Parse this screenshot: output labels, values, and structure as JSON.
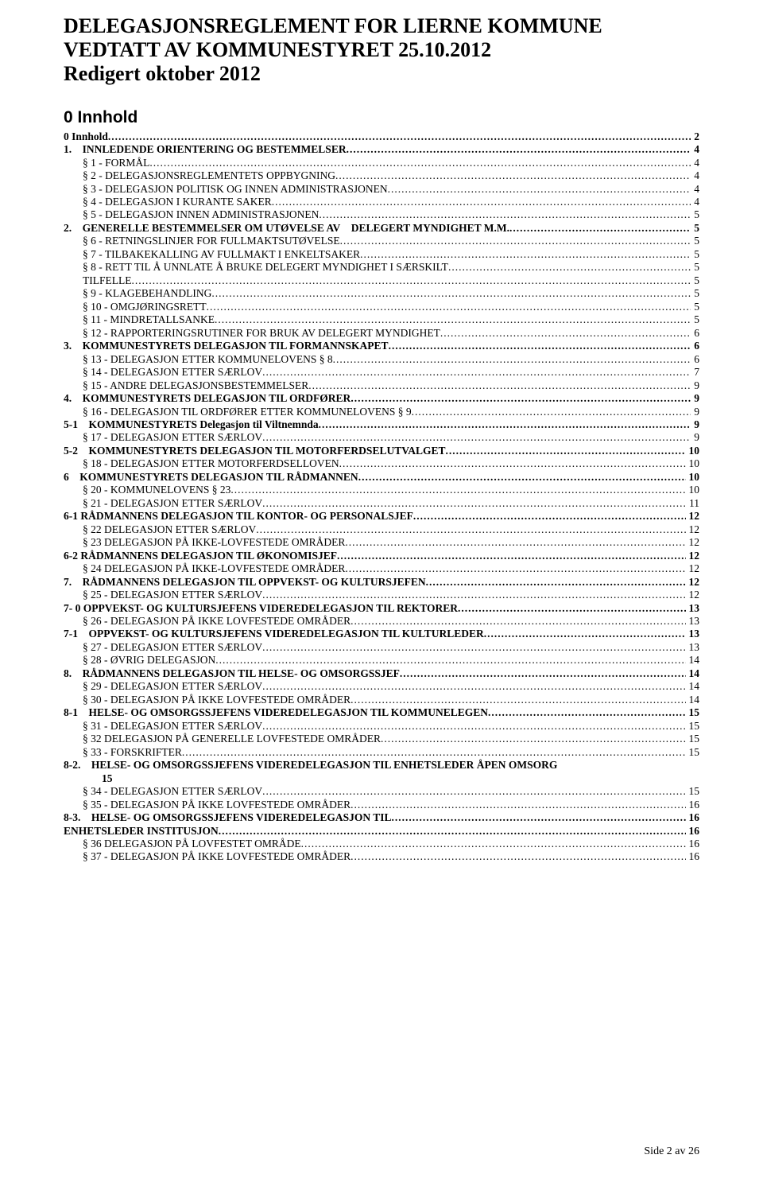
{
  "title": {
    "line1": "DELEGASJONSREGLEMENT FOR LIERNE KOMMUNE",
    "line2": "VEDTATT AV KOMMUNESTYRET 25.10.2012",
    "line3": "Redigert oktober 2012"
  },
  "section_heading": "0 Innhold",
  "footer": "Side 2 av 26",
  "toc": [
    {
      "lvl": 0,
      "label": "0 Innhold",
      "page": "2"
    },
    {
      "lvl": 0,
      "label": "1. INNLEDENDE ORIENTERING OG BESTEMMELSER",
      "page": "4"
    },
    {
      "lvl": 1,
      "label": "§ 1 - FORMÅL",
      "page": "4"
    },
    {
      "lvl": 1,
      "label": "§ 2 - DELEGASJONSREGLEMENTETS OPPBYGNING",
      "page": "4"
    },
    {
      "lvl": 1,
      "label": "§ 3 - DELEGASJON POLITISK OG INNEN ADMINISTRASJONEN",
      "page": "4"
    },
    {
      "lvl": 1,
      "label": "§ 4 - DELEGASJON I KURANTE SAKER",
      "page": "4"
    },
    {
      "lvl": 1,
      "label": "§ 5 - DELEGASJON INNEN ADMINISTRASJONEN",
      "page": "5"
    },
    {
      "lvl": 0,
      "label": "2. GENERELLE BESTEMMELSER OM UTØVELSE AV DELEGERT MYNDIGHET M.M.",
      "page": "5"
    },
    {
      "lvl": 1,
      "label": "§ 6 - RETNINGSLINJER FOR FULLMAKTSUTØVELSE",
      "page": "5"
    },
    {
      "lvl": 1,
      "label": "§ 7 - TILBAKEKALLING AV FULLMAKT I ENKELTSAKER",
      "page": "5"
    },
    {
      "lvl": 1,
      "label": "§ 8 - RETT TIL Å UNNLATE Å BRUKE DELEGERT MYNDIGHET I SÆRSKILT",
      "page": "5"
    },
    {
      "lvl": 1,
      "label": "TILFELLE",
      "page": "5"
    },
    {
      "lvl": 1,
      "label": "§ 9 - KLAGEBEHANDLING",
      "page": "5"
    },
    {
      "lvl": 1,
      "label": "§ 10 - OMGJØRINGSRETT",
      "page": "5"
    },
    {
      "lvl": 1,
      "label": "§ 11 - MINDRETALLSANKE",
      "page": "5"
    },
    {
      "lvl": 1,
      "label": "§ 12 - RAPPORTERINGSRUTINER FOR BRUK AV DELEGERT MYNDIGHET",
      "page": "6"
    },
    {
      "lvl": 0,
      "label": "3. KOMMUNESTYRETS DELEGASJON TIL  FORMANNSKAPET",
      "page": "6"
    },
    {
      "lvl": 1,
      "label": "§ 13 - DELEGASJON ETTER KOMMUNELOVENS § 8",
      "page": "6"
    },
    {
      "lvl": 1,
      "label": "§ 14 - DELEGASJON ETTER SÆRLOV",
      "page": "7"
    },
    {
      "lvl": 1,
      "label": "§ 15 - ANDRE DELEGASJONSBESTEMMELSER",
      "page": "9"
    },
    {
      "lvl": 0,
      "label": "4. KOMMUNESTYRETS DELEGASJON TIL ORDFØRER",
      "page": "9"
    },
    {
      "lvl": 1,
      "label": "§ 16 - DELEGASJON TIL ORDFØRER ETTER KOMMUNELOVENS § 9",
      "page": "9"
    },
    {
      "lvl": 0,
      "label": "5-1 KOMMUNESTYRETS Delegasjon til Viltnemnda",
      "page": "9"
    },
    {
      "lvl": 1,
      "label": "§ 17 - DELEGASJON ETTER SÆRLOV",
      "page": "9"
    },
    {
      "lvl": 0,
      "label": "5-2 KOMMUNESTYRETS DELEGASJON TIL MOTORFERDSELUTVALGET",
      "page": "10"
    },
    {
      "lvl": 1,
      "label": "§ 18 - DELEGASJON ETTER MOTORFERDSELLOVEN",
      "page": "10"
    },
    {
      "lvl": 0,
      "label": "6 KOMMUNESTYRETS DELEGASJON TIL RÅDMANNEN",
      "page": "10"
    },
    {
      "lvl": 1,
      "label": "§ 20 - KOMMUNELOVENS § 23",
      "page": "10"
    },
    {
      "lvl": 1,
      "label": "§ 21 - DELEGASJON ETTER SÆRLOV",
      "page": "11"
    },
    {
      "lvl": 0,
      "label": "6-1  RÅDMANNENS DELEGASJON TIL KONTOR- OG PERSONALSJEF",
      "page": "12"
    },
    {
      "lvl": 1,
      "label": "§ 22  DELEGASJON ETTER SÆRLOV",
      "page": "12"
    },
    {
      "lvl": 1,
      "label": "§ 23  DELEGASJON PÅ IKKE-LOVFESTEDE OMRÅDER",
      "page": "12"
    },
    {
      "lvl": 0,
      "label": "6-2  RÅDMANNENS DELEGASJON TIL ØKONOMISJEF",
      "page": "12"
    },
    {
      "lvl": 1,
      "label": "§ 24  DELEGASJON PÅ IKKE-LOVFESTEDE OMRÅDER",
      "page": "12"
    },
    {
      "lvl": 0,
      "label": "7. RÅDMANNENS DELEGASJON TIL OPPVEKST- OG  KULTURSJEFEN",
      "page": "12"
    },
    {
      "lvl": 1,
      "label": "§ 25 - DELEGASJON ETTER SÆRLOV",
      "page": "12"
    },
    {
      "lvl": 0,
      "label": "7- 0  OPPVEKST- OG KULTURSJEFENS VIDEREDELEGASJON TIL REKTORER",
      "page": "13"
    },
    {
      "lvl": 1,
      "label": "§ 26 - DELEGASJON PÅ IKKE LOVFESTEDE OMRÅDER",
      "page": "13"
    },
    {
      "lvl": 0,
      "label": "7-1 OPPVEKST- OG KULTURSJEFENS VIDEREDELEGASJON TIL  KULTURLEDER",
      "page": "13"
    },
    {
      "lvl": 1,
      "label": "§ 27 - DELEGASJON ETTER SÆRLOV",
      "page": "13"
    },
    {
      "lvl": 1,
      "label": "§ 28 - ØVRIG DELEGASJON",
      "page": "14"
    },
    {
      "lvl": 0,
      "label": "8. RÅDMANNENS DELEGASJON TIL HELSE- OG OMSORGSSJEF",
      "page": "14"
    },
    {
      "lvl": 1,
      "label": "§ 29 - DELEGASJON ETTER SÆRLOV",
      "page": "14"
    },
    {
      "lvl": 1,
      "label": "§ 30 - DELEGASJON PÅ IKKE LOVFESTEDE OMRÅDER",
      "page": "14"
    },
    {
      "lvl": 0,
      "label": "8-1 HELSE- OG OMSORGSSJEFENS VIDEREDELEGASJON TIL KOMMUNELEGEN",
      "page": "15"
    },
    {
      "lvl": 1,
      "label": "§ 31 - DELEGASJON ETTER SÆRLOV",
      "page": "15"
    },
    {
      "lvl": 1,
      "label": "§ 32   DELEGASJON PÅ GENERELLE LOVFESTEDE OMRÅDER",
      "page": "15"
    },
    {
      "lvl": 1,
      "label": "§ 33 - FORSKRIFTER",
      "page": "15"
    },
    {
      "lvl": 0,
      "multi": true,
      "label": "8-2. HELSE- OG OMSORGSSJEFENS VIDEREDELEGASJON TIL  ENHETSLEDER ÅPEN  OMSORG",
      "page": "",
      "line2": "15"
    },
    {
      "lvl": 1,
      "label": "§ 34 - DELEGASJON ETTER SÆRLOV",
      "page": "15"
    },
    {
      "lvl": 1,
      "label": "§ 35 - DELEGASJON PÅ IKKE LOVFESTEDE OMRÅDER",
      "page": "16"
    },
    {
      "lvl": 0,
      "label": "8-3. HELSE- OG OMSORGSSJEFENS VIDEREDELEGASJON TIL",
      "page": "16"
    },
    {
      "lvl": 0,
      "label": "ENHETSLEDER INSTITUSJON",
      "page": "16"
    },
    {
      "lvl": 1,
      "label": "§ 36 DELEGASJON PÅ LOVFESTET OMRÅDE",
      "page": "16"
    },
    {
      "lvl": 1,
      "label": "§ 37 - DELEGASJON PÅ IKKE LOVFESTEDE OMRÅDER",
      "page": "16"
    }
  ]
}
